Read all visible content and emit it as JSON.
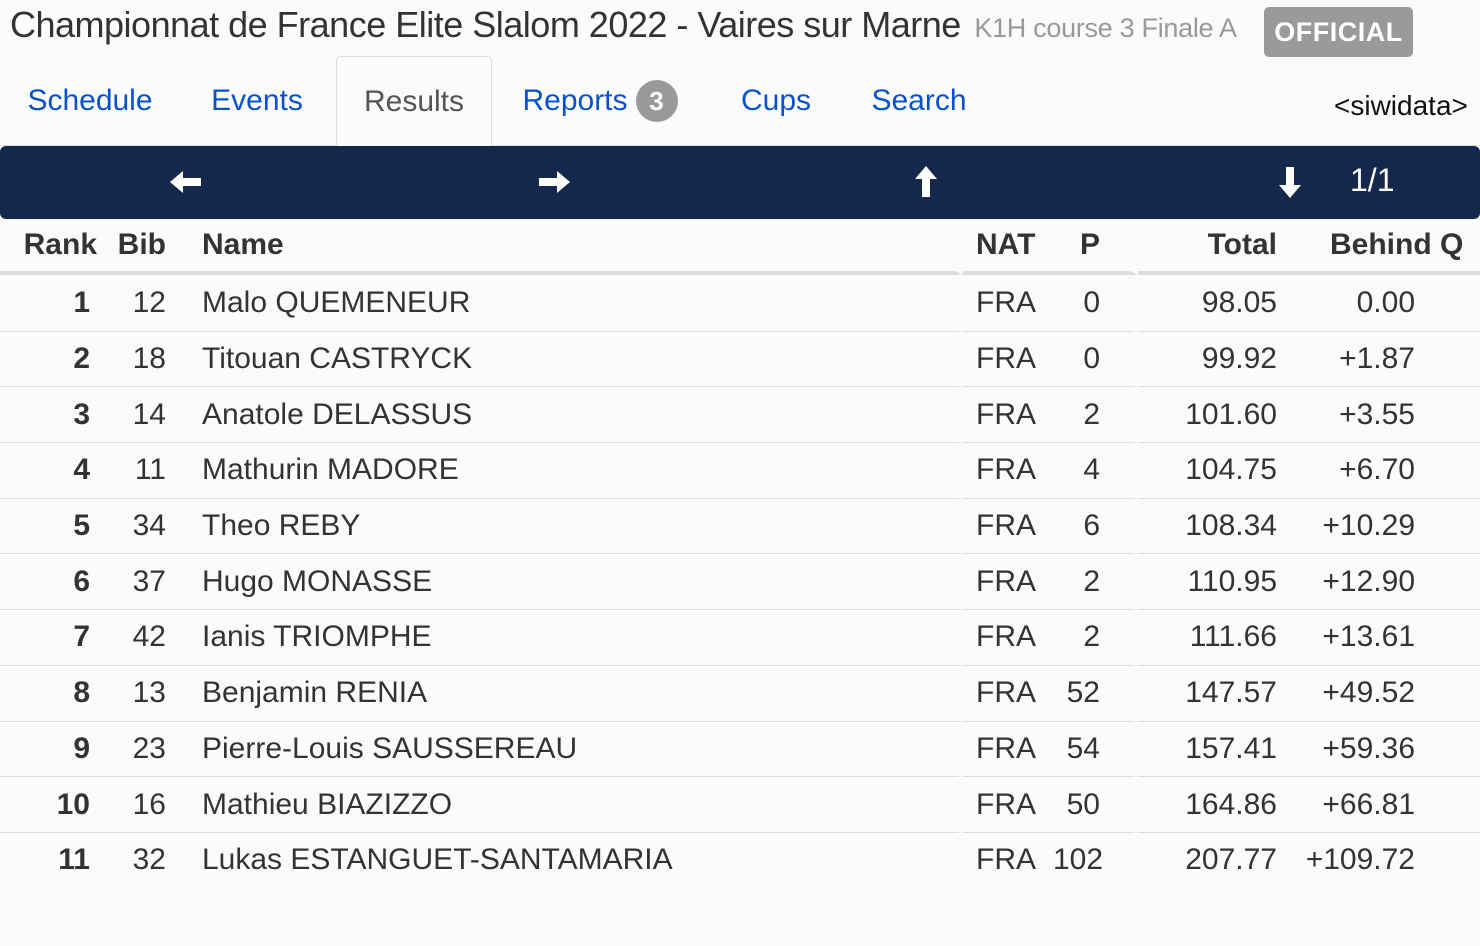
{
  "header": {
    "title": "Championnat de France Elite Slalom 2022 - Vaires sur Marne",
    "subtitle": "K1H course 3 Finale A",
    "status_badge": "OFFICIAL"
  },
  "tabs": [
    {
      "label": "Schedule"
    },
    {
      "label": "Events"
    },
    {
      "label": "Results"
    },
    {
      "label": "Reports",
      "count": "3"
    },
    {
      "label": "Cups"
    },
    {
      "label": "Search"
    }
  ],
  "brand": "<siwidata>",
  "pager": {
    "indicator": "1/1",
    "icons": [
      "arrow-left-icon",
      "arrow-right-icon",
      "arrow-up-icon",
      "arrow-down-icon"
    ]
  },
  "table": {
    "columns": {
      "rank": "Rank",
      "bib": "Bib",
      "name": "Name",
      "nat": "NAT",
      "p": "P",
      "total": "Total",
      "behind": "Behind",
      "q": "Q"
    },
    "rows": [
      {
        "rank": "1",
        "bib": "12",
        "name": "Malo QUEMENEUR",
        "nat": "FRA",
        "p": "0",
        "total": "98.05",
        "behind": "0.00"
      },
      {
        "rank": "2",
        "bib": "18",
        "name": "Titouan CASTRYCK",
        "nat": "FRA",
        "p": "0",
        "total": "99.92",
        "behind": "+1.87"
      },
      {
        "rank": "3",
        "bib": "14",
        "name": "Anatole DELASSUS",
        "nat": "FRA",
        "p": "2",
        "total": "101.60",
        "behind": "+3.55"
      },
      {
        "rank": "4",
        "bib": "11",
        "name": "Mathurin MADORE",
        "nat": "FRA",
        "p": "4",
        "total": "104.75",
        "behind": "+6.70"
      },
      {
        "rank": "5",
        "bib": "34",
        "name": "Theo REBY",
        "nat": "FRA",
        "p": "6",
        "total": "108.34",
        "behind": "+10.29"
      },
      {
        "rank": "6",
        "bib": "37",
        "name": "Hugo MONASSE",
        "nat": "FRA",
        "p": "2",
        "total": "110.95",
        "behind": "+12.90"
      },
      {
        "rank": "7",
        "bib": "42",
        "name": "Ianis TRIOMPHE",
        "nat": "FRA",
        "p": "2",
        "total": "111.66",
        "behind": "+13.61"
      },
      {
        "rank": "8",
        "bib": "13",
        "name": "Benjamin RENIA",
        "nat": "FRA",
        "p": "52",
        "total": "147.57",
        "behind": "+49.52"
      },
      {
        "rank": "9",
        "bib": "23",
        "name": "Pierre-Louis SAUSSEREAU",
        "nat": "FRA",
        "p": "54",
        "total": "157.41",
        "behind": "+59.36"
      },
      {
        "rank": "10",
        "bib": "16",
        "name": "Mathieu BIAZIZZO",
        "nat": "FRA",
        "p": "50",
        "total": "164.86",
        "behind": "+66.81"
      },
      {
        "rank": "11",
        "bib": "32",
        "name": "Lukas ESTANGUET-SANTAMARIA",
        "nat": "FRA",
        "p": "102",
        "total": "207.77",
        "behind": "+109.72"
      }
    ]
  },
  "colors": {
    "link": "#0a52cc",
    "navbar": "#14284c",
    "badge": "#9a9a9a"
  }
}
